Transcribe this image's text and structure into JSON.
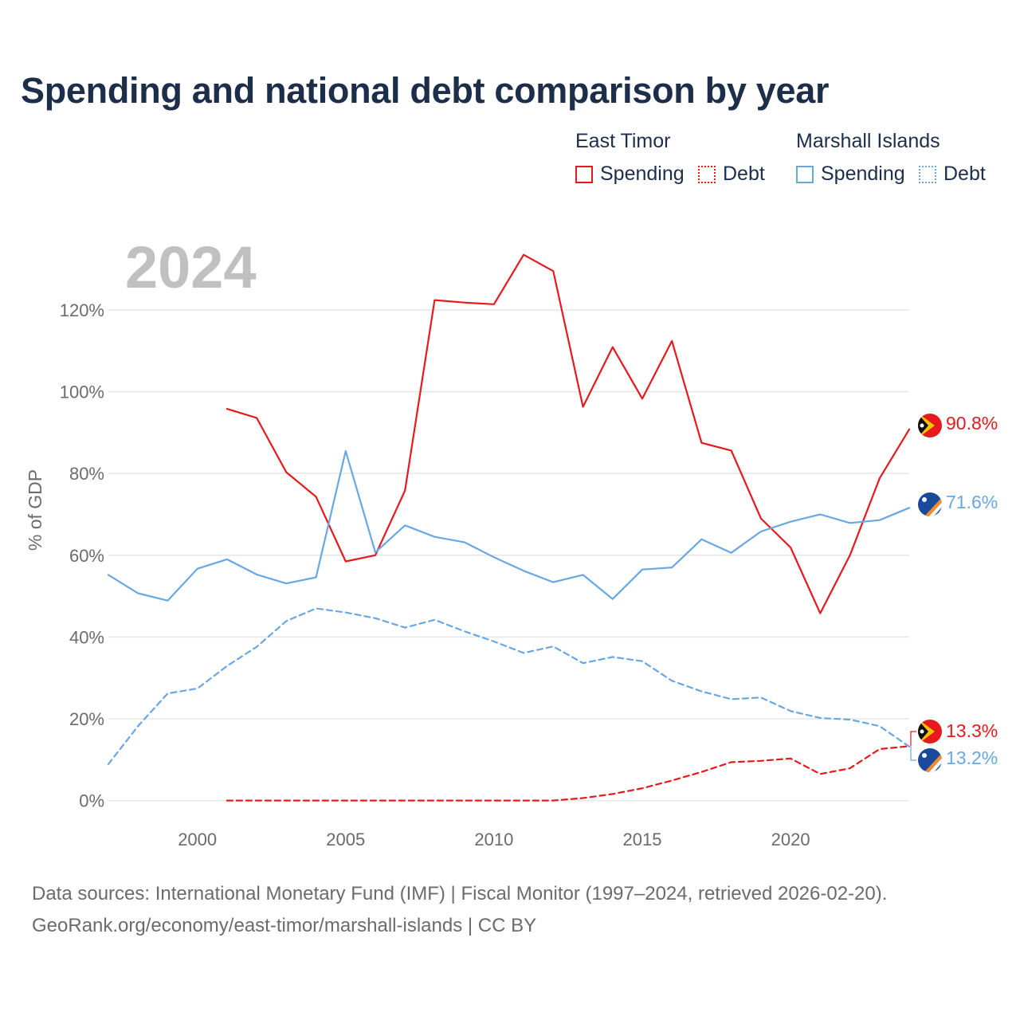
{
  "chart_data": {
    "type": "line",
    "title": "Spending and national debt comparison by year",
    "year_label": "2024",
    "ylabel": "% of GDP",
    "xlabel": "",
    "xlim": [
      1997,
      2024
    ],
    "ylim": [
      -3,
      135
    ],
    "x_ticks": [
      2000,
      2005,
      2010,
      2015,
      2020
    ],
    "y_ticks": [
      0,
      20,
      40,
      60,
      80,
      100,
      120
    ],
    "y_tick_suffix": "%",
    "grid": true,
    "legend_position": "top-right",
    "legend_groups": [
      {
        "name": "East Timor",
        "items": [
          {
            "label": "Spending",
            "style": "solid"
          },
          {
            "label": "Debt",
            "style": "dotted"
          }
        ]
      },
      {
        "name": "Marshall Islands",
        "items": [
          {
            "label": "Spending",
            "style": "solid"
          },
          {
            "label": "Debt",
            "style": "dotted"
          }
        ]
      }
    ],
    "series": [
      {
        "name": "East Timor Spending",
        "country": "East Timor",
        "metric": "Spending",
        "color": "#e8191d",
        "dash": "solid",
        "x": [
          2001,
          2002,
          2003,
          2004,
          2005,
          2006,
          2007,
          2008,
          2009,
          2010,
          2011,
          2012,
          2013,
          2014,
          2015,
          2016,
          2017,
          2018,
          2019,
          2020,
          2021,
          2022,
          2023,
          2024
        ],
        "values": [
          95.8,
          93.6,
          80.3,
          74.3,
          58.5,
          60.0,
          75.8,
          122.4,
          121.8,
          121.4,
          133.5,
          129.5,
          96.3,
          110.9,
          98.3,
          112.4,
          87.5,
          85.6,
          69.0,
          61.9,
          45.8,
          60.0,
          78.8,
          90.8
        ],
        "end_label": "90.8%"
      },
      {
        "name": "East Timor Debt",
        "country": "East Timor",
        "metric": "Debt",
        "color": "#e8191d",
        "dash": "dashed",
        "x": [
          2001,
          2002,
          2003,
          2004,
          2005,
          2006,
          2007,
          2008,
          2009,
          2010,
          2011,
          2012,
          2013,
          2014,
          2015,
          2016,
          2017,
          2018,
          2019,
          2020,
          2021,
          2022,
          2023,
          2024
        ],
        "values": [
          0,
          0,
          0,
          0,
          0,
          0,
          0,
          0,
          0,
          0,
          0,
          0,
          0.6,
          1.6,
          3.0,
          4.9,
          7.0,
          9.4,
          9.7,
          10.3,
          6.5,
          7.9,
          12.6,
          13.3
        ],
        "end_label": "13.3%"
      },
      {
        "name": "Marshall Islands Spending",
        "country": "Marshall Islands",
        "metric": "Spending",
        "color": "#69a7e3",
        "dash": "solid",
        "x": [
          1997,
          1998,
          1999,
          2000,
          2001,
          2002,
          2003,
          2004,
          2005,
          2006,
          2007,
          2008,
          2009,
          2010,
          2011,
          2012,
          2013,
          2014,
          2015,
          2016,
          2017,
          2018,
          2019,
          2020,
          2021,
          2022,
          2023,
          2024
        ],
        "values": [
          55.2,
          50.7,
          48.9,
          56.7,
          59.0,
          55.3,
          53.1,
          54.6,
          85.5,
          60.7,
          67.3,
          64.5,
          63.2,
          59.5,
          56.2,
          53.4,
          55.2,
          49.3,
          56.5,
          57.0,
          63.9,
          60.6,
          65.8,
          68.2,
          70.0,
          67.9,
          68.6,
          71.6
        ],
        "end_label": "71.6%"
      },
      {
        "name": "Marshall Islands Debt",
        "country": "Marshall Islands",
        "metric": "Debt",
        "color": "#69a7e3",
        "dash": "dashed",
        "x": [
          1997,
          1998,
          1999,
          2000,
          2001,
          2002,
          2003,
          2004,
          2005,
          2006,
          2007,
          2008,
          2009,
          2010,
          2011,
          2012,
          2013,
          2014,
          2015,
          2016,
          2017,
          2018,
          2019,
          2020,
          2021,
          2022,
          2023,
          2024
        ],
        "values": [
          8.9,
          18.2,
          26.2,
          27.4,
          32.9,
          37.6,
          43.9,
          47.0,
          46.0,
          44.6,
          42.3,
          44.2,
          41.4,
          38.9,
          36.1,
          37.7,
          33.6,
          35.1,
          34.1,
          29.3,
          26.7,
          24.8,
          25.2,
          21.9,
          20.2,
          19.8,
          18.2,
          13.2
        ],
        "end_label": "13.2%"
      }
    ]
  },
  "footer": {
    "sources": "Data sources: International Monetary Fund (IMF) | Fiscal Monitor (1997–2024, retrieved 2026-02-20).",
    "credit": "GeoRank.org/economy/east-timor/marshall-islands | CC BY"
  }
}
